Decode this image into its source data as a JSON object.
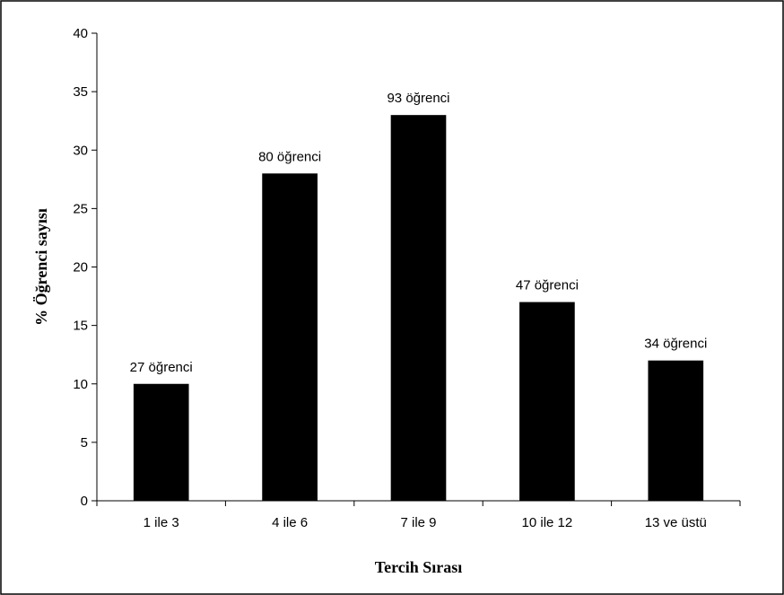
{
  "chart_data": {
    "type": "bar",
    "categories": [
      "1 ile 3",
      "4 ile 6",
      "7 ile 9",
      "10 ile 12",
      "13 ve üstü"
    ],
    "values": [
      10,
      28,
      33,
      17,
      12
    ],
    "data_labels": [
      "27 öğrenci",
      "80 öğrenci",
      "93 öğrenci",
      "47 öğrenci",
      "34 öğrenci"
    ],
    "title": "",
    "xlabel": "Tercih Sırası",
    "ylabel": "% Öğrenci sayısı",
    "ylim": [
      0,
      40
    ],
    "yticks": [
      "0",
      "5",
      "10",
      "15",
      "20",
      "25",
      "30",
      "35",
      "40"
    ],
    "grid": false,
    "legend": "none",
    "bar_color": "#000000"
  }
}
